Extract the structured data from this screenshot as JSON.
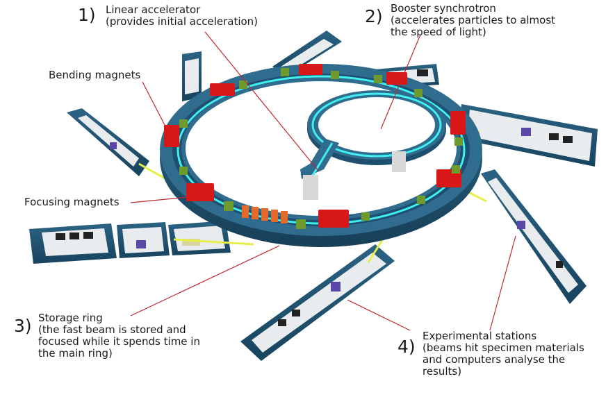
{
  "diagram": {
    "labels": {
      "linac": {
        "number": "1)",
        "lines": [
          "Linear accelerator",
          "(provides initial acceleration)"
        ]
      },
      "booster": {
        "number": "2)",
        "lines": [
          "Booster synchrotron",
          "(accelerates particles to almost",
          "the speed of light)"
        ]
      },
      "bending": {
        "lines": [
          "Bending magnets"
        ]
      },
      "focusing": {
        "lines": [
          "Focusing magnets"
        ]
      },
      "storage": {
        "number": "3)",
        "lines": [
          "Storage ring",
          "(the fast beam is stored and",
          "focused while it spends time in",
          "the main ring)"
        ]
      },
      "stations": {
        "number": "4)",
        "lines": [
          "Experimental stations",
          "(beams hit specimen materials",
          "and computers analyse the",
          "results)"
        ]
      }
    },
    "colors": {
      "ring_wall": "#1f4f6e",
      "ring_top": "#2f6c8e",
      "beam": "#3ff0f0",
      "magnet_red": "#d81818",
      "magnet_green": "#6f9a2e",
      "beamline_yellow": "#e6ee4a",
      "leader_line": "#c0282e"
    }
  }
}
